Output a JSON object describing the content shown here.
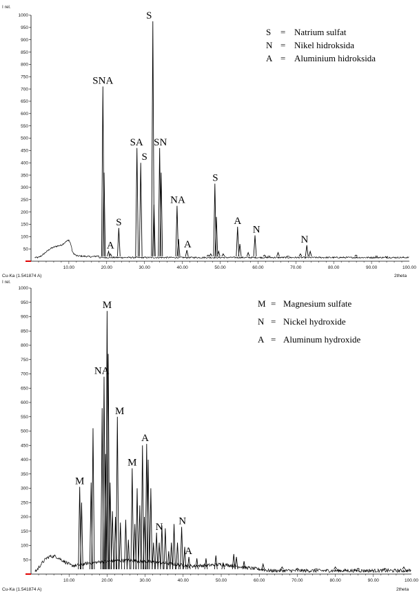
{
  "chart_data": [
    {
      "type": "line",
      "ylabel": "I rel.",
      "xlabel": "2theta",
      "source_label": "Cu-Ka (1.541874 A)",
      "xlim": [
        0,
        100
      ],
      "ylim": [
        0,
        1000
      ],
      "xticks": [
        10,
        20,
        30,
        40,
        50,
        60,
        70,
        80,
        90,
        100
      ],
      "xtick_labels": [
        "10.00",
        "20.00",
        "30.00",
        "40.00",
        "50.00",
        "60.00",
        "70.00",
        "80.00",
        "90.00",
        "100.00"
      ],
      "yticks": [
        50,
        100,
        150,
        200,
        250,
        300,
        350,
        400,
        450,
        500,
        550,
        600,
        650,
        700,
        750,
        800,
        850,
        900,
        950,
        1000
      ],
      "legend": [
        {
          "key": "S",
          "eq": "=",
          "name": "Natrium sulfat"
        },
        {
          "key": "N",
          "eq": "=",
          "name": "Nikel hidroksida"
        },
        {
          "key": "A",
          "eq": "=",
          "name": "Aluminium hidroksida"
        }
      ],
      "hump": [
        [
          1,
          5
        ],
        [
          3,
          25
        ],
        [
          5,
          50
        ],
        [
          6.5,
          60
        ],
        [
          8,
          65
        ],
        [
          9.5,
          82
        ],
        [
          10,
          86
        ],
        [
          10.5,
          70
        ],
        [
          11,
          35
        ],
        [
          12,
          22
        ],
        [
          14,
          20
        ],
        [
          16,
          18
        ],
        [
          18,
          22
        ]
      ],
      "baseline": 15,
      "peaks": [
        [
          19.0,
          710
        ],
        [
          19.3,
          360
        ],
        [
          20.5,
          40
        ],
        [
          21,
          30
        ],
        [
          23.2,
          135
        ],
        [
          28.0,
          460
        ],
        [
          29.0,
          400
        ],
        [
          32.2,
          975
        ],
        [
          32.5,
          230
        ],
        [
          34.0,
          460
        ],
        [
          34.4,
          360
        ],
        [
          38.6,
          225
        ],
        [
          39,
          90
        ],
        [
          41.2,
          45
        ],
        [
          46.8,
          25
        ],
        [
          47.5,
          30
        ],
        [
          48.6,
          315
        ],
        [
          49.0,
          180
        ],
        [
          49.6,
          40
        ],
        [
          50.8,
          30
        ],
        [
          54.6,
          140
        ],
        [
          55.2,
          70
        ],
        [
          57.4,
          35
        ],
        [
          59.2,
          105
        ],
        [
          61.7,
          25
        ],
        [
          62.9,
          20
        ],
        [
          65.3,
          35
        ],
        [
          67.9,
          20
        ],
        [
          71.2,
          30
        ],
        [
          72.9,
          65
        ],
        [
          73.8,
          40
        ],
        [
          85.9,
          25
        ],
        [
          91.3,
          20
        ],
        [
          94,
          15
        ]
      ],
      "annotations": [
        {
          "text": "SNA",
          "x": 19.0,
          "y": 710
        },
        {
          "text": "A",
          "x": 21.0,
          "y": 40
        },
        {
          "text": "S",
          "x": 23.2,
          "y": 135
        },
        {
          "text": "SA",
          "x": 27.9,
          "y": 460
        },
        {
          "text": "S",
          "x": 30.0,
          "y": 400
        },
        {
          "text": "S",
          "x": 31.2,
          "y": 975
        },
        {
          "text": "SN",
          "x": 34.2,
          "y": 460
        },
        {
          "text": "NA",
          "x": 38.8,
          "y": 225
        },
        {
          "text": "A",
          "x": 41.4,
          "y": 45
        },
        {
          "text": "S",
          "x": 48.7,
          "y": 315
        },
        {
          "text": "A",
          "x": 54.6,
          "y": 140
        },
        {
          "text": "N",
          "x": 59.6,
          "y": 105
        },
        {
          "text": "N",
          "x": 72.3,
          "y": 65
        }
      ]
    },
    {
      "type": "line",
      "ylabel": "I rel.",
      "xlabel": "2theta",
      "source_label": "Cu-Ka (1.541874 A)",
      "xlim": [
        0,
        100
      ],
      "ylim": [
        0,
        1000
      ],
      "xticks": [
        10,
        20,
        30,
        40,
        50,
        60,
        70,
        80,
        90,
        100
      ],
      "xtick_labels": [
        "10.00",
        "20.00",
        "30.00",
        "40.00",
        "50.00",
        "60.00",
        "70.00",
        "80.00",
        "90.00",
        "100.00"
      ],
      "yticks": [
        50,
        100,
        150,
        200,
        250,
        300,
        350,
        400,
        450,
        500,
        550,
        600,
        650,
        700,
        750,
        800,
        850,
        900,
        950,
        1000
      ],
      "legend": [
        {
          "key": "M",
          "eq": "=",
          "name": "Magnesium sulfate"
        },
        {
          "key": "N",
          "eq": "=",
          "name": "Nickel hydroxide"
        },
        {
          "key": "A",
          "eq": "=",
          "name": "Aluminum hydroxide"
        }
      ],
      "hump": [
        [
          1,
          5
        ],
        [
          3,
          40
        ],
        [
          4,
          55
        ],
        [
          5,
          62
        ],
        [
          6.5,
          62
        ],
        [
          8,
          50
        ],
        [
          9,
          42
        ],
        [
          10.5,
          30
        ],
        [
          12,
          30
        ],
        [
          15,
          38
        ],
        [
          18,
          42
        ],
        [
          22,
          46
        ],
        [
          26,
          48
        ],
        [
          30,
          44
        ],
        [
          34,
          40
        ],
        [
          38,
          34
        ],
        [
          42,
          28
        ],
        [
          46,
          30
        ],
        [
          50,
          34
        ],
        [
          54,
          28
        ],
        [
          58,
          20
        ],
        [
          62,
          14
        ]
      ],
      "baseline": 12,
      "peaks": [
        [
          12.8,
          305
        ],
        [
          13.3,
          250
        ],
        [
          15.8,
          320
        ],
        [
          16.3,
          510
        ],
        [
          18.7,
          580
        ],
        [
          19.2,
          690
        ],
        [
          19.6,
          420
        ],
        [
          20.0,
          920
        ],
        [
          20.3,
          770
        ],
        [
          20.8,
          320
        ],
        [
          21.4,
          220
        ],
        [
          22.2,
          200
        ],
        [
          22.7,
          550
        ],
        [
          23.5,
          180
        ],
        [
          24.9,
          190
        ],
        [
          25.6,
          120
        ],
        [
          26.6,
          370
        ],
        [
          27.3,
          175
        ],
        [
          27.9,
          300
        ],
        [
          28.6,
          240
        ],
        [
          29.3,
          450
        ],
        [
          29.8,
          200
        ],
        [
          30.4,
          455
        ],
        [
          30.8,
          400
        ],
        [
          31.5,
          300
        ],
        [
          32.2,
          110
        ],
        [
          33.0,
          145
        ],
        [
          33.7,
          110
        ],
        [
          34.4,
          170
        ],
        [
          35.3,
          160
        ],
        [
          36.2,
          80
        ],
        [
          36.9,
          110
        ],
        [
          37.6,
          175
        ],
        [
          38.5,
          110
        ],
        [
          39.6,
          165
        ],
        [
          40.4,
          95
        ],
        [
          41.5,
          60
        ],
        [
          43.6,
          55
        ],
        [
          46.0,
          55
        ],
        [
          48.6,
          65
        ],
        [
          50.5,
          40
        ],
        [
          53.3,
          70
        ],
        [
          54.0,
          60
        ],
        [
          56.0,
          45
        ],
        [
          61.0,
          35
        ],
        [
          66.0,
          25
        ],
        [
          70,
          20
        ],
        [
          75,
          18
        ],
        [
          80,
          25
        ],
        [
          86,
          20
        ],
        [
          93,
          20
        ],
        [
          98,
          25
        ]
      ],
      "annotations": [
        {
          "text": "M",
          "x": 12.8,
          "y": 305
        },
        {
          "text": "NA",
          "x": 18.6,
          "y": 690
        },
        {
          "text": "M",
          "x": 20.0,
          "y": 920
        },
        {
          "text": "M",
          "x": 23.3,
          "y": 550
        },
        {
          "text": "M",
          "x": 26.6,
          "y": 370
        },
        {
          "text": "A",
          "x": 30.0,
          "y": 455
        },
        {
          "text": "N",
          "x": 33.7,
          "y": 145
        },
        {
          "text": "N",
          "x": 39.8,
          "y": 165
        },
        {
          "text": "A",
          "x": 41.4,
          "y": 60
        }
      ]
    }
  ]
}
